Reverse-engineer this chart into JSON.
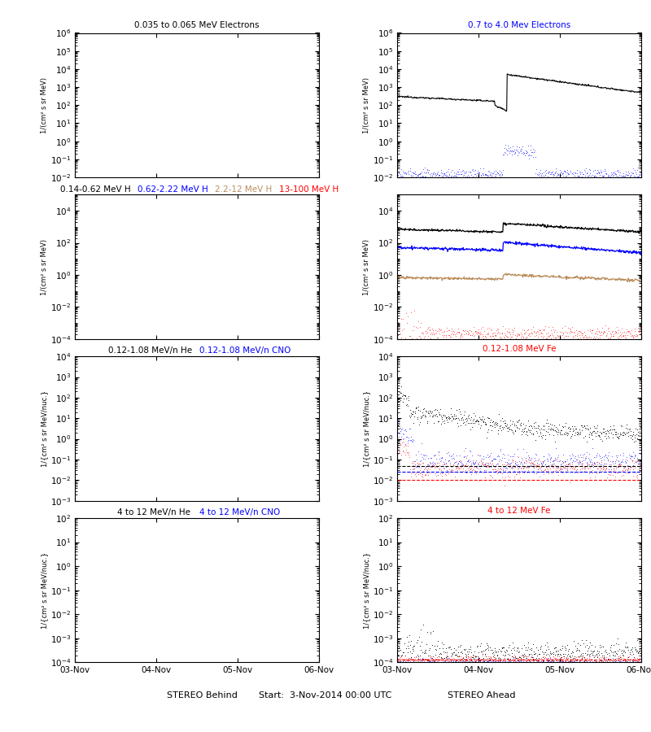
{
  "title_left": "STEREO Behind",
  "title_right": "STEREO Ahead",
  "start_label": "Start:  3-Nov-2014 00:00 UTC",
  "xtick_labels": [
    "03-Nov",
    "04-Nov",
    "05-Nov",
    "06-Nov"
  ],
  "row_labels_left": [
    [
      "0.035 to 0.065 MeV Electrons"
    ],
    [
      "0.14-0.62 MeV H",
      "0.62-2.22 MeV H",
      "2.2-12 MeV H",
      "13-100 MeV H"
    ],
    [
      "0.12-1.08 MeV/n He",
      "0.12-1.08 MeV/n CNO"
    ],
    [
      "4 to 12 MeV/n He",
      "4 to 12 MeV/n CNO"
    ]
  ],
  "row_labels_right": [
    [
      "0.7 to 4.0 Mev Electrons"
    ],
    [],
    [
      "0.12-1.08 MeV Fe"
    ],
    [
      "4 to 12 MeV Fe"
    ]
  ],
  "row_colors_left": [
    [
      "black"
    ],
    [
      "black",
      "blue",
      "#bc8f5f",
      "red"
    ],
    [
      "black",
      "blue"
    ],
    [
      "black",
      "blue"
    ]
  ],
  "row_colors_right": [
    [
      "blue"
    ],
    [],
    [
      "red"
    ],
    [
      "red"
    ]
  ],
  "ylim_rows": [
    [
      0.01,
      1000000.0
    ],
    [
      0.0001,
      100000.0
    ],
    [
      0.001,
      10000.0
    ],
    [
      0.0001,
      100.0
    ]
  ],
  "ylabel_rows": [
    "1/(cm2 s sr MeV)",
    "1/(cm2 s sr MeV)",
    "1/{cm2 s sr MeV/nuc.}",
    "1/{cm2 s sr MeV/nuc.}"
  ],
  "bg_color": "#ffffff"
}
